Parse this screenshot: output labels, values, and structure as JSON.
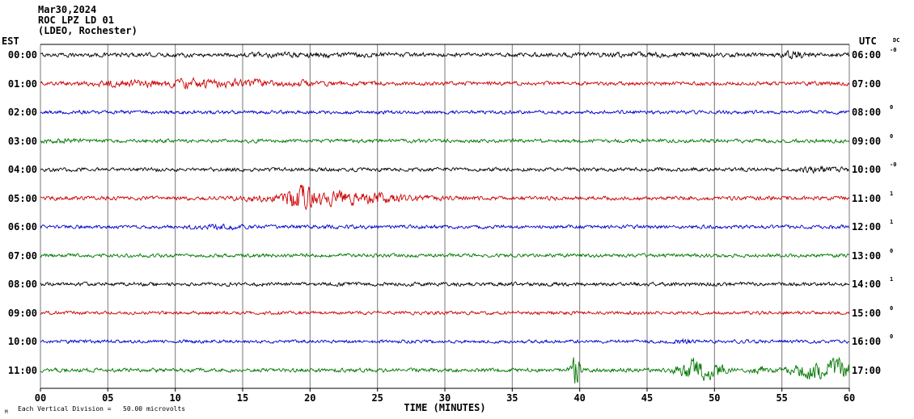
{
  "header": {
    "date": "Mar30,2024",
    "station": "ROC LPZ LD 01",
    "location": "(LDEO, Rochester)"
  },
  "axis": {
    "left_corner": "EST",
    "right_corner": "UTC",
    "dc_corner": "DC",
    "x_title": "TIME (MINUTES)",
    "x_ticks": [
      "00",
      "05",
      "10",
      "15",
      "20",
      "25",
      "30",
      "35",
      "40",
      "45",
      "50",
      "55",
      "60"
    ]
  },
  "footer": {
    "mark": "M",
    "note": "Each Vertical Division =   50.00 microvolts"
  },
  "chart_data": {
    "type": "line",
    "title": "ROC LPZ LD 01 (LDEO, Rochester) Mar30,2024 helicorder",
    "xlabel": "TIME (MINUTES)",
    "x_range": [
      0,
      60
    ],
    "x_tick_step": 5,
    "vertical_division_microvolts": 50.0,
    "trace_color_cycle": [
      "#000000",
      "#cc0000",
      "#0000cc",
      "#007700"
    ],
    "rows": [
      {
        "est": "00:00",
        "utc": "06:00",
        "dc": "-0",
        "color": "#000000",
        "base_amp": 1.6,
        "events": [
          {
            "center": 20,
            "sigma": 4,
            "amp": 0.35
          },
          {
            "center": 44,
            "sigma": 3,
            "amp": 0.3
          },
          {
            "center": 56,
            "sigma": 0.6,
            "amp": 1.2
          }
        ]
      },
      {
        "est": "01:00",
        "utc": "07:00",
        "dc": "",
        "color": "#cc0000",
        "base_amp": 1.5,
        "events": [
          {
            "center": 6,
            "sigma": 1.5,
            "amp": 1.0
          },
          {
            "center": 11,
            "sigma": 2.0,
            "amp": 1.6
          },
          {
            "center": 15.5,
            "sigma": 1.5,
            "amp": 1.1
          },
          {
            "center": 19.5,
            "sigma": 1.2,
            "amp": 0.9
          },
          {
            "center": 24,
            "sigma": 1.0,
            "amp": 0.5
          }
        ]
      },
      {
        "est": "02:00",
        "utc": "08:00",
        "dc": "0",
        "color": "#0000cc",
        "base_amp": 1.35,
        "events": []
      },
      {
        "est": "03:00",
        "utc": "09:00",
        "dc": "0",
        "color": "#007700",
        "base_amp": 1.45,
        "events": [
          {
            "center": 1.5,
            "sigma": 1.0,
            "amp": 0.7
          }
        ]
      },
      {
        "est": "04:00",
        "utc": "10:00",
        "dc": "-0",
        "color": "#000000",
        "base_amp": 1.5,
        "events": [
          {
            "center": 57.5,
            "sigma": 1.2,
            "amp": 0.7
          }
        ]
      },
      {
        "est": "05:00",
        "utc": "11:00",
        "dc": "1",
        "color": "#cc0000",
        "base_amp": 1.5,
        "events": [
          {
            "center": 19.3,
            "sigma": 0.9,
            "amp": 6.5
          },
          {
            "center": 21.8,
            "sigma": 1.1,
            "amp": 2.8
          },
          {
            "center": 24.6,
            "sigma": 1.3,
            "amp": 2.2
          },
          {
            "center": 15.8,
            "sigma": 0.9,
            "amp": 1.0
          },
          {
            "center": 28,
            "sigma": 1.5,
            "amp": 0.6
          }
        ]
      },
      {
        "est": "06:00",
        "utc": "12:00",
        "dc": "1",
        "color": "#0000cc",
        "base_amp": 1.4,
        "events": [
          {
            "center": 13,
            "sigma": 1.2,
            "amp": 0.7
          }
        ]
      },
      {
        "est": "07:00",
        "utc": "13:00",
        "dc": "0",
        "color": "#007700",
        "base_amp": 1.4,
        "events": []
      },
      {
        "est": "08:00",
        "utc": "14:00",
        "dc": "1",
        "color": "#000000",
        "base_amp": 1.45,
        "events": []
      },
      {
        "est": "09:00",
        "utc": "15:00",
        "dc": "0",
        "color": "#cc0000",
        "base_amp": 1.3,
        "events": []
      },
      {
        "est": "10:00",
        "utc": "16:00",
        "dc": "0",
        "color": "#0000cc",
        "base_amp": 1.3,
        "events": [
          {
            "center": 47.5,
            "sigma": 0.8,
            "amp": 0.7
          }
        ]
      },
      {
        "est": "11:00",
        "utc": "17:00",
        "dc": "",
        "color": "#007700",
        "base_amp": 1.5,
        "events": [
          {
            "center": 39.7,
            "sigma": 0.22,
            "amp": 9
          },
          {
            "center": 48.7,
            "sigma": 0.9,
            "amp": 5
          },
          {
            "center": 50.2,
            "sigma": 0.5,
            "amp": 2
          },
          {
            "center": 53.2,
            "sigma": 0.5,
            "amp": 1.5
          },
          {
            "center": 57.3,
            "sigma": 1.2,
            "amp": 3.5
          },
          {
            "center": 59.3,
            "sigma": 0.8,
            "amp": 3.5
          }
        ]
      }
    ]
  }
}
